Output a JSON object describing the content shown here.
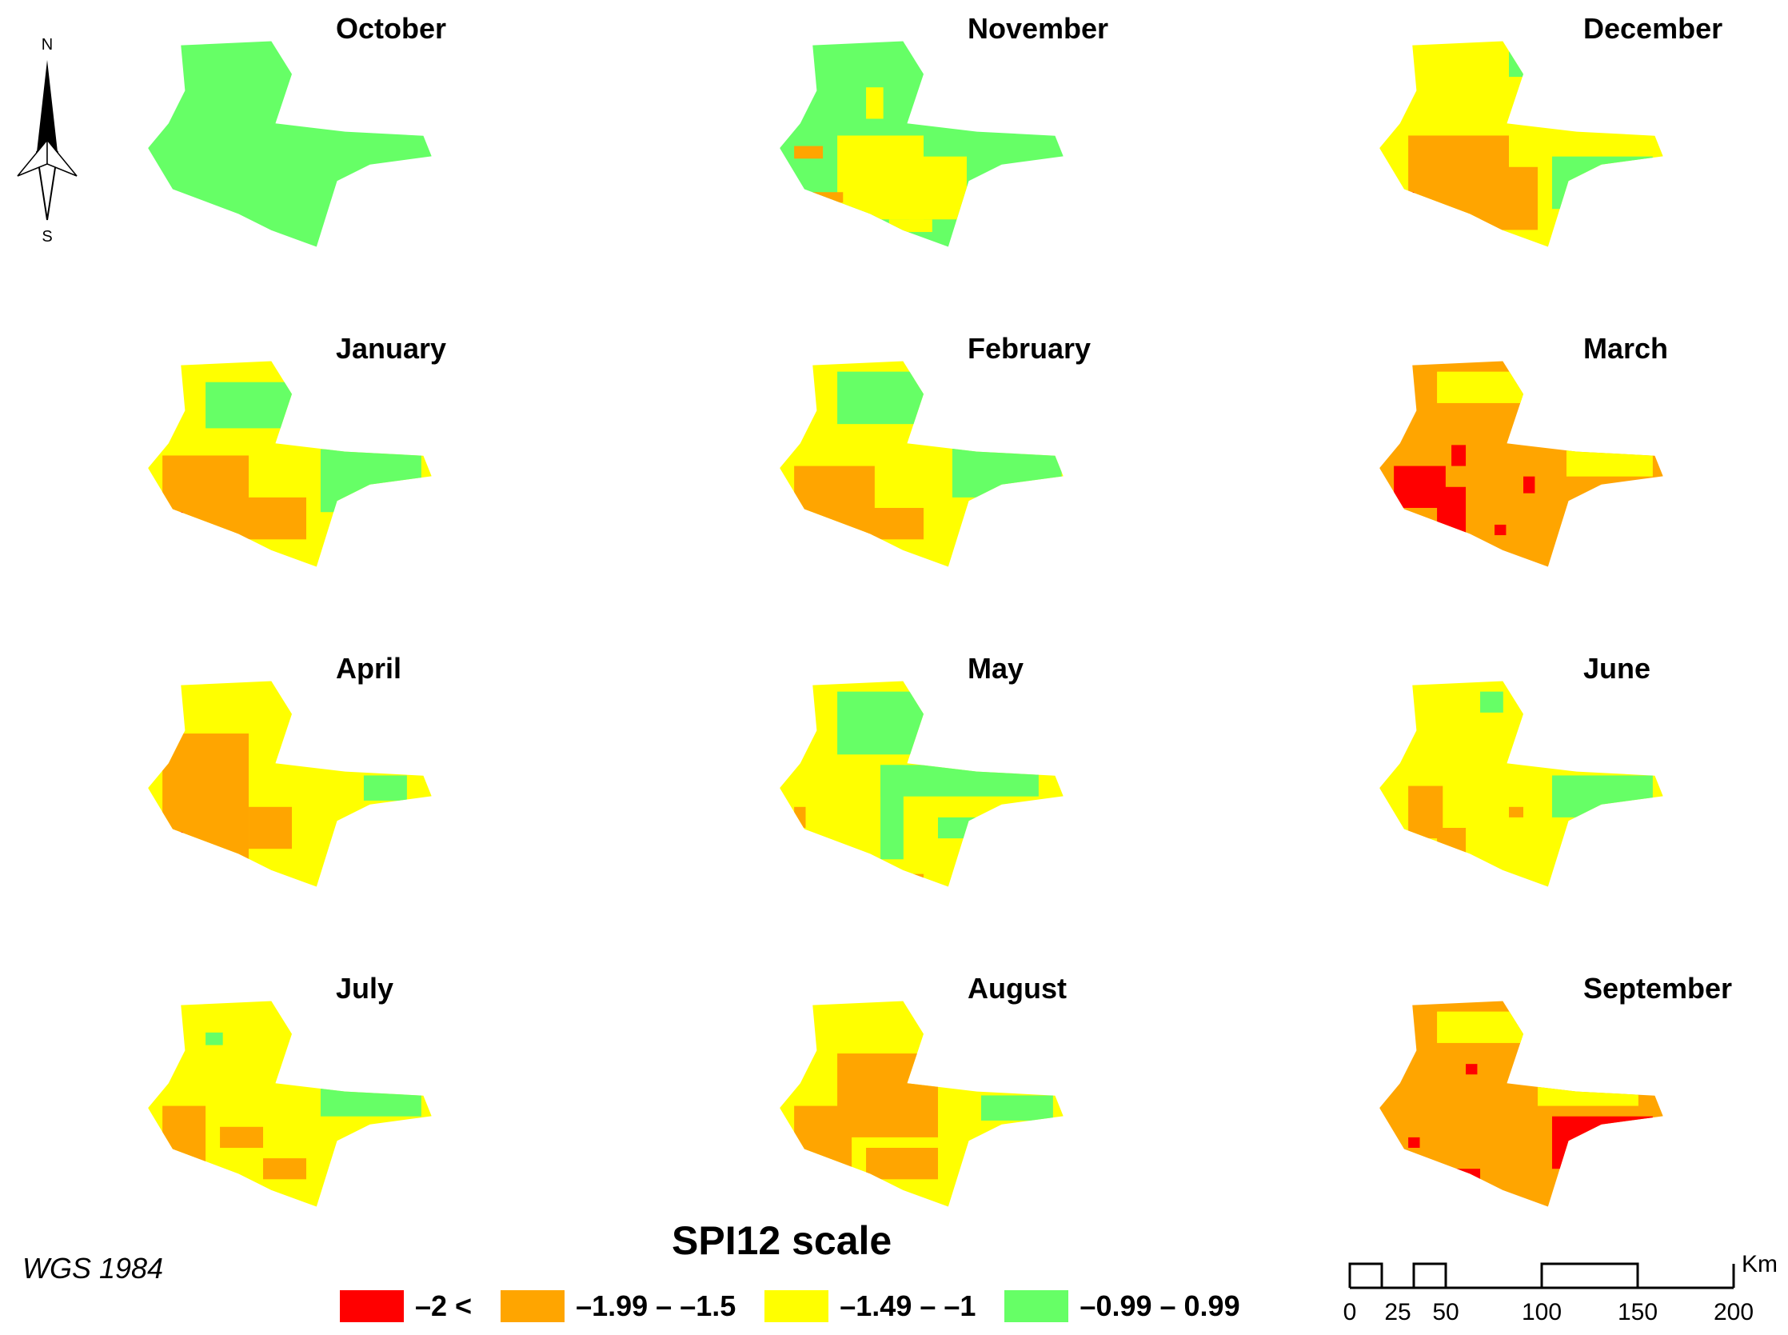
{
  "months": [
    "October",
    "November",
    "December",
    "January",
    "February",
    "March",
    "April",
    "May",
    "June",
    "July",
    "August",
    "September"
  ],
  "panels": [
    {
      "month": "October",
      "base": "#66ff66",
      "blocks": []
    },
    {
      "month": "November",
      "base": "#66ff66",
      "blocks": [
        [
          "#ffff00",
          0.2,
          0.45,
          0.3,
          0.4
        ],
        [
          "#ffff00",
          0.45,
          0.55,
          0.2,
          0.3
        ],
        [
          "#ffa500",
          0.05,
          0.5,
          0.1,
          0.06
        ],
        [
          "#ffa500",
          0.1,
          0.72,
          0.12,
          0.05
        ],
        [
          "#ffff00",
          0.3,
          0.22,
          0.06,
          0.15
        ],
        [
          "#ffff00",
          0.38,
          0.85,
          0.15,
          0.06
        ]
      ]
    },
    {
      "month": "December",
      "base": "#ffff00",
      "blocks": [
        [
          "#ffa500",
          0.1,
          0.45,
          0.35,
          0.45
        ],
        [
          "#ffa500",
          0.35,
          0.6,
          0.2,
          0.3
        ],
        [
          "#66ff66",
          0.45,
          0.05,
          0.2,
          0.12
        ],
        [
          "#66ff66",
          0.6,
          0.55,
          0.35,
          0.25
        ],
        [
          "#ff0000",
          0.08,
          0.72,
          0.04,
          0.05
        ]
      ]
    },
    {
      "month": "January",
      "base": "#ffff00",
      "blocks": [
        [
          "#66ff66",
          0.2,
          0.1,
          0.4,
          0.22
        ],
        [
          "#66ff66",
          0.6,
          0.42,
          0.35,
          0.3
        ],
        [
          "#ffa500",
          0.05,
          0.45,
          0.3,
          0.4
        ],
        [
          "#ffa500",
          0.3,
          0.65,
          0.25,
          0.2
        ],
        [
          "#ff0000",
          0.08,
          0.72,
          0.04,
          0.05
        ]
      ]
    },
    {
      "month": "February",
      "base": "#ffff00",
      "blocks": [
        [
          "#66ff66",
          0.2,
          0.05,
          0.4,
          0.25
        ],
        [
          "#66ff66",
          0.6,
          0.4,
          0.38,
          0.25
        ],
        [
          "#ffa500",
          0.05,
          0.5,
          0.28,
          0.35
        ],
        [
          "#ffa500",
          0.3,
          0.7,
          0.2,
          0.15
        ]
      ]
    },
    {
      "month": "March",
      "base": "#ffa500",
      "blocks": [
        [
          "#ffff00",
          0.2,
          0.05,
          0.45,
          0.15
        ],
        [
          "#ffff00",
          0.65,
          0.4,
          0.3,
          0.15
        ],
        [
          "#ff0000",
          0.05,
          0.5,
          0.18,
          0.2
        ],
        [
          "#ff0000",
          0.2,
          0.6,
          0.1,
          0.3
        ],
        [
          "#ff0000",
          0.25,
          0.4,
          0.05,
          0.1
        ],
        [
          "#ff0000",
          0.5,
          0.55,
          0.04,
          0.08
        ],
        [
          "#ff0000",
          0.4,
          0.78,
          0.04,
          0.05
        ]
      ]
    },
    {
      "month": "April",
      "base": "#ffff00",
      "blocks": [
        [
          "#ffa500",
          0.05,
          0.25,
          0.3,
          0.6
        ],
        [
          "#ffa500",
          0.35,
          0.6,
          0.15,
          0.2
        ],
        [
          "#66ff66",
          0.75,
          0.45,
          0.15,
          0.12
        ],
        [
          "#ff0000",
          0.08,
          0.72,
          0.04,
          0.08
        ]
      ]
    },
    {
      "month": "May",
      "base": "#ffff00",
      "blocks": [
        [
          "#66ff66",
          0.2,
          0.05,
          0.4,
          0.3
        ],
        [
          "#66ff66",
          0.35,
          0.4,
          0.55,
          0.15
        ],
        [
          "#66ff66",
          0.35,
          0.4,
          0.08,
          0.45
        ],
        [
          "#66ff66",
          0.55,
          0.65,
          0.2,
          0.1
        ],
        [
          "#ffa500",
          0.05,
          0.6,
          0.04,
          0.1
        ],
        [
          "#ffa500",
          0.4,
          0.92,
          0.1,
          0.04
        ]
      ]
    },
    {
      "month": "June",
      "base": "#ffff00",
      "blocks": [
        [
          "#66ff66",
          0.6,
          0.45,
          0.35,
          0.2
        ],
        [
          "#66ff66",
          0.35,
          0.05,
          0.08,
          0.1
        ],
        [
          "#ffa500",
          0.1,
          0.5,
          0.12,
          0.25
        ],
        [
          "#ffa500",
          0.2,
          0.7,
          0.1,
          0.15
        ],
        [
          "#ffa500",
          0.45,
          0.6,
          0.05,
          0.05
        ]
      ]
    },
    {
      "month": "July",
      "base": "#ffff00",
      "blocks": [
        [
          "#66ff66",
          0.6,
          0.4,
          0.35,
          0.15
        ],
        [
          "#66ff66",
          0.2,
          0.15,
          0.06,
          0.06
        ],
        [
          "#ffa500",
          0.05,
          0.5,
          0.15,
          0.35
        ],
        [
          "#ffa500",
          0.25,
          0.6,
          0.15,
          0.1
        ],
        [
          "#ffa500",
          0.4,
          0.75,
          0.15,
          0.1
        ]
      ]
    },
    {
      "month": "August",
      "base": "#ffff00",
      "blocks": [
        [
          "#ffa500",
          0.2,
          0.25,
          0.35,
          0.4
        ],
        [
          "#ffa500",
          0.05,
          0.5,
          0.2,
          0.3
        ],
        [
          "#ffa500",
          0.3,
          0.7,
          0.25,
          0.15
        ],
        [
          "#66ff66",
          0.7,
          0.45,
          0.25,
          0.12
        ],
        [
          "#ff0000",
          0.06,
          0.72,
          0.04,
          0.05
        ]
      ]
    },
    {
      "month": "September",
      "base": "#ffa500",
      "blocks": [
        [
          "#ffff00",
          0.2,
          0.05,
          0.3,
          0.15
        ],
        [
          "#ffff00",
          0.55,
          0.4,
          0.35,
          0.1
        ],
        [
          "#ff0000",
          0.2,
          0.8,
          0.15,
          0.12
        ],
        [
          "#ff0000",
          0.6,
          0.55,
          0.35,
          0.25
        ],
        [
          "#ff0000",
          0.4,
          0.95,
          0.1,
          0.04
        ],
        [
          "#ff0000",
          0.3,
          0.3,
          0.04,
          0.05
        ],
        [
          "#ff0000",
          0.1,
          0.65,
          0.04,
          0.05
        ]
      ]
    }
  ],
  "north_arrow": {
    "north_label": "N",
    "south_label": "S"
  },
  "crs_label": "WGS 1984",
  "legend": {
    "title": "SPI12 scale",
    "items": [
      {
        "label": "–2 <",
        "color": "#ff0000"
      },
      {
        "label": "–1.99 – –1.5",
        "color": "#ffa500"
      },
      {
        "label": "–1.49 – –1",
        "color": "#ffff00"
      },
      {
        "label": "–0.99 – 0.99",
        "color": "#66ff66"
      }
    ]
  },
  "scale_bar": {
    "unit": "Km",
    "ticks": [
      "0",
      "25",
      "50",
      "100",
      "150",
      "200"
    ]
  }
}
